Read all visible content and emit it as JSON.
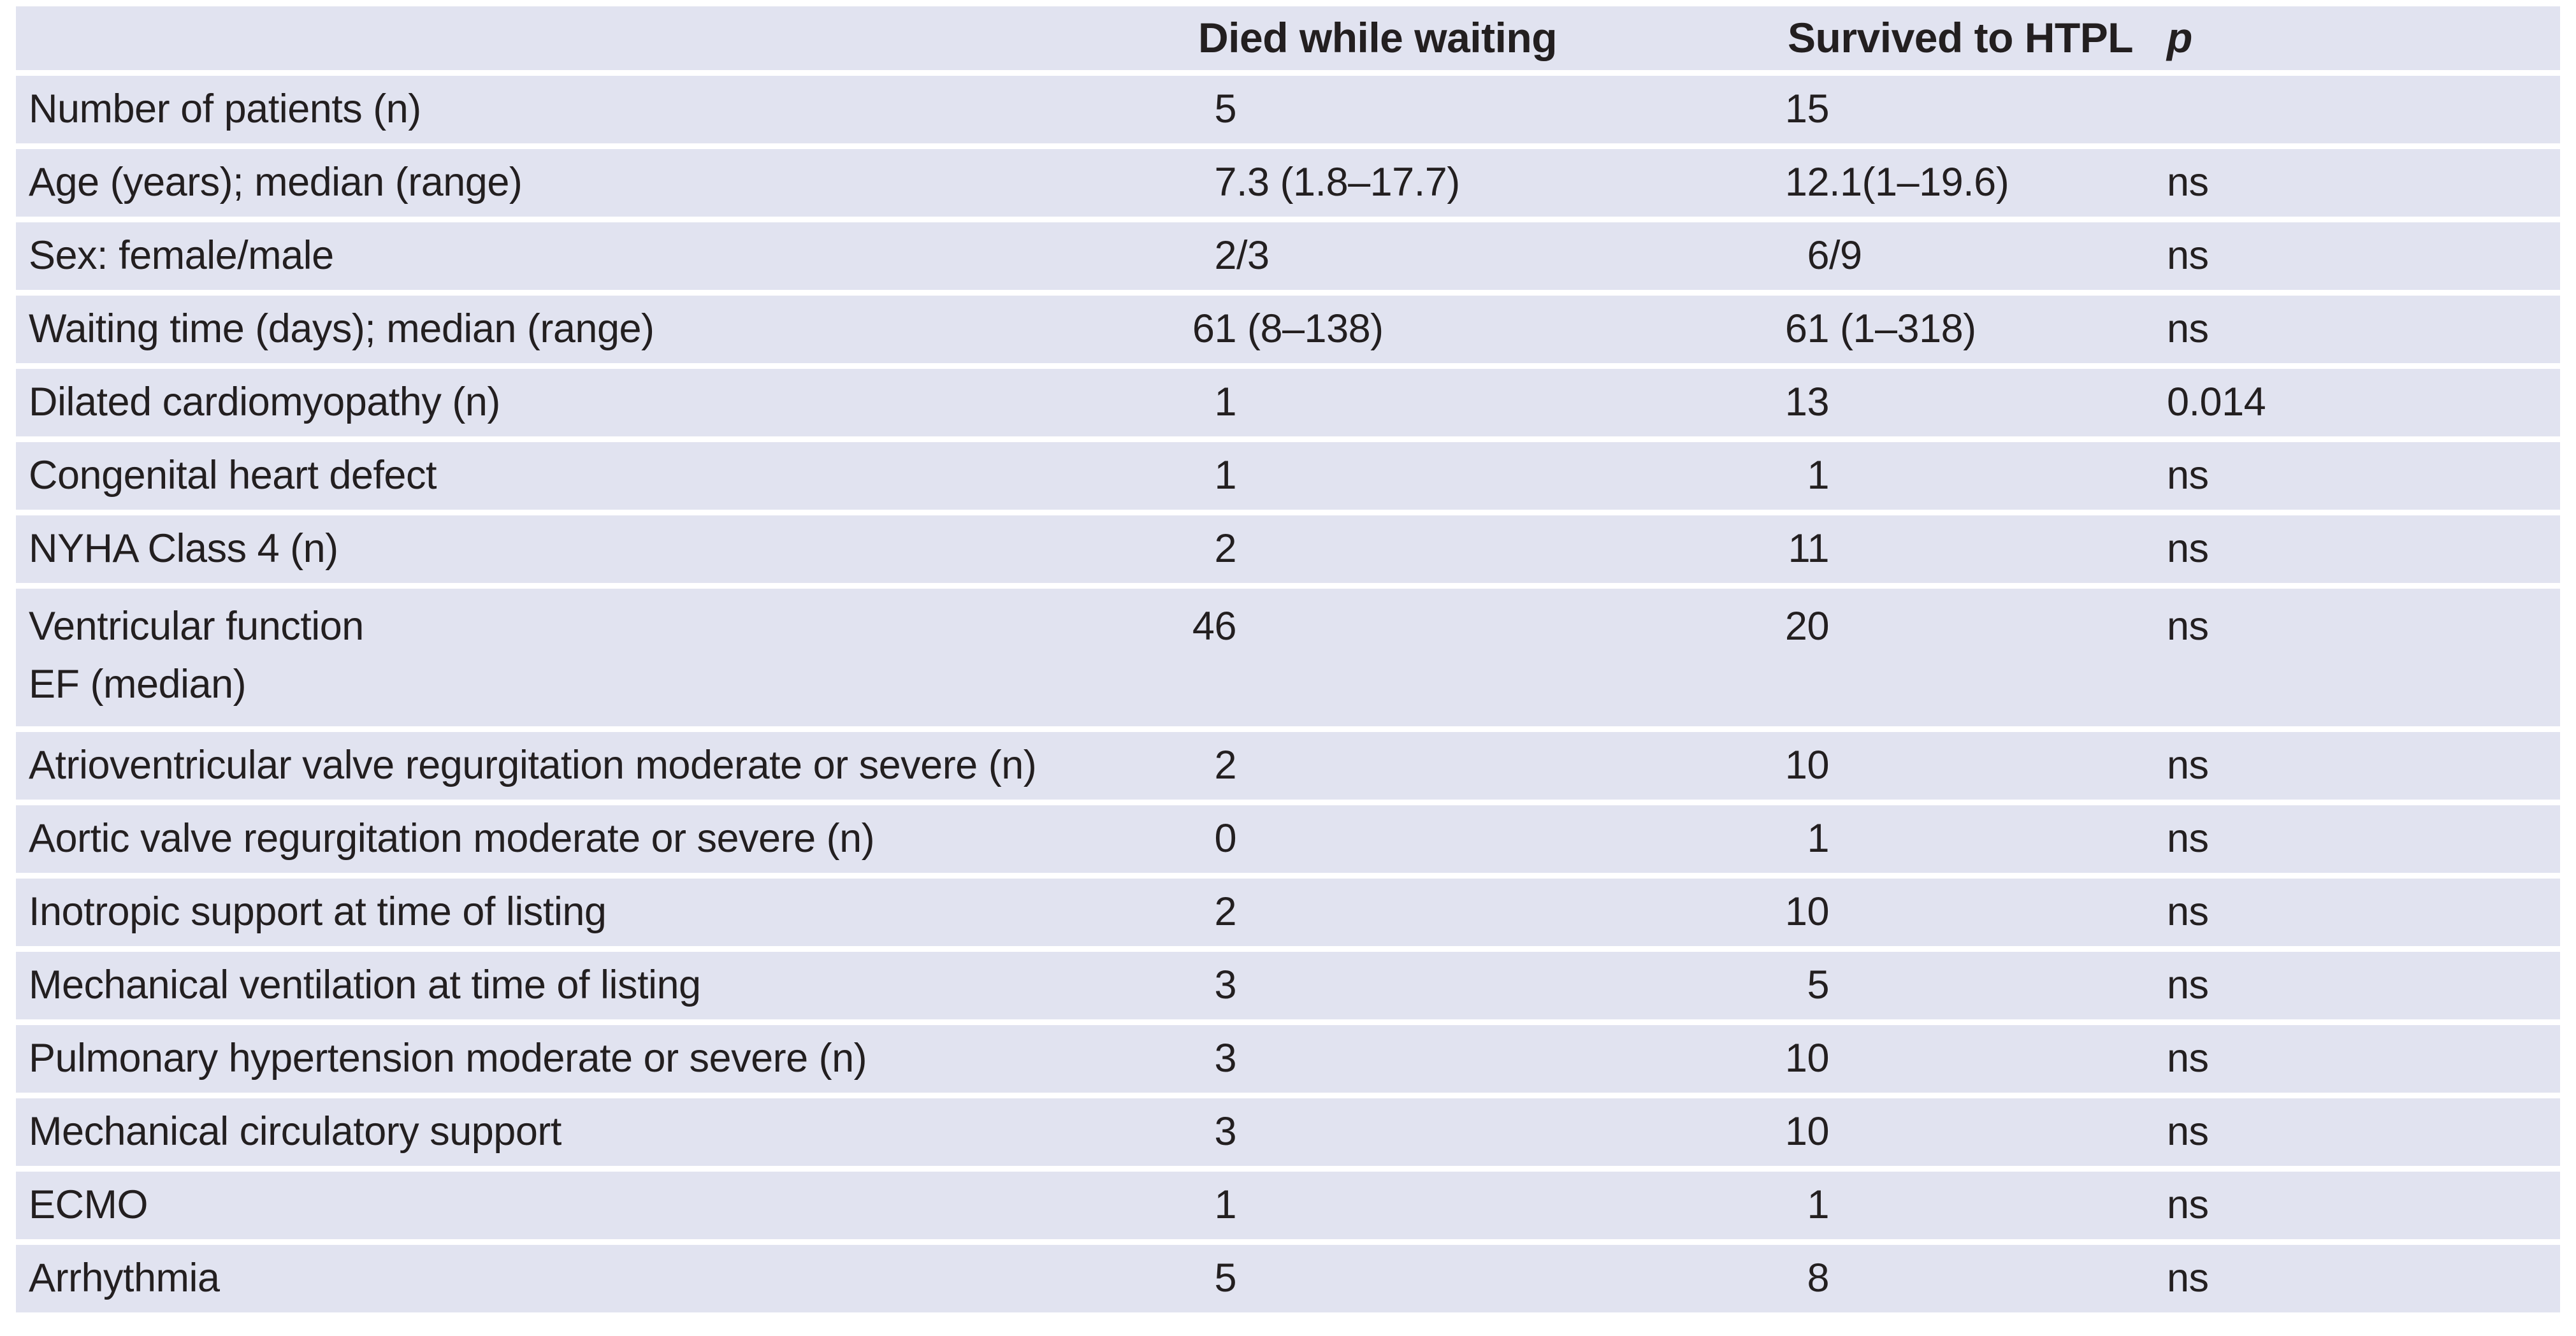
{
  "page": {
    "background": "#ffffff"
  },
  "table": {
    "background": "#e1e3f0",
    "separator_color": "#ffffff",
    "text_color": "#231f20",
    "header": {
      "col_label": "",
      "col_died": "Died while waiting",
      "col_survived": "Survived to HTPL",
      "col_p": "p"
    },
    "rows": [
      {
        "label": "Number of patients (n)",
        "died_num": "5",
        "died_rest": "",
        "surv_num": "15",
        "surv_rest": "",
        "p": ""
      },
      {
        "label": "Age (years); median (range)",
        "died_num": "7",
        "died_rest": ".3 (1.8–17.7)",
        "surv_num": "12",
        "surv_rest": ".1(1–19.6)",
        "p": "ns"
      },
      {
        "label": "Sex: female/male",
        "died_num": "2",
        "died_rest": "/3",
        "surv_num": "6",
        "surv_rest": "/9",
        "p": "ns"
      },
      {
        "label": "Waiting time (days); median (range)",
        "died_num": "61",
        "died_rest": " (8–138)",
        "surv_num": "61",
        "surv_rest": " (1–318)",
        "p": "ns"
      },
      {
        "label": "Dilated cardiomyopathy (n)",
        "died_num": "1",
        "died_rest": "",
        "surv_num": "13",
        "surv_rest": "",
        "p": "0.014"
      },
      {
        "label": "Congenital heart defect",
        "died_num": "1",
        "died_rest": "",
        "surv_num": "1",
        "surv_rest": "",
        "p": "ns"
      },
      {
        "label": "NYHA Class 4 (n)",
        "died_num": "2",
        "died_rest": "",
        "surv_num": "11",
        "surv_rest": "",
        "p": "ns"
      },
      {
        "label": "Ventricular function\nEF (median)",
        "died_num": "46",
        "died_rest": "",
        "surv_num": "20",
        "surv_rest": "",
        "p": "ns",
        "tall": true
      },
      {
        "label": "Atrioventricular valve regurgitation moderate or severe (n)",
        "died_num": "2",
        "died_rest": "",
        "surv_num": "10",
        "surv_rest": "",
        "p": "ns"
      },
      {
        "label": "Aortic valve regurgitation moderate or severe (n)",
        "died_num": "0",
        "died_rest": "",
        "surv_num": "1",
        "surv_rest": "",
        "p": "ns"
      },
      {
        "label": "Inotropic support at time of listing",
        "died_num": "2",
        "died_rest": "",
        "surv_num": "10",
        "surv_rest": "",
        "p": "ns"
      },
      {
        "label": "Mechanical ventilation at time of listing",
        "died_num": "3",
        "died_rest": "",
        "surv_num": "5",
        "surv_rest": "",
        "p": "ns"
      },
      {
        "label": "Pulmonary hypertension moderate or severe (n)",
        "died_num": "3",
        "died_rest": "",
        "surv_num": "10",
        "surv_rest": "",
        "p": "ns"
      },
      {
        "label": "Mechanical circulatory support",
        "died_num": "3",
        "died_rest": "",
        "surv_num": "10",
        "surv_rest": "",
        "p": "ns"
      },
      {
        "label": "ECMO",
        "died_num": "1",
        "died_rest": "",
        "surv_num": "1",
        "surv_rest": "",
        "p": "ns"
      },
      {
        "label": "Arrhythmia",
        "died_num": "5",
        "died_rest": "",
        "surv_num": "8",
        "surv_rest": "",
        "p": "ns"
      }
    ]
  }
}
